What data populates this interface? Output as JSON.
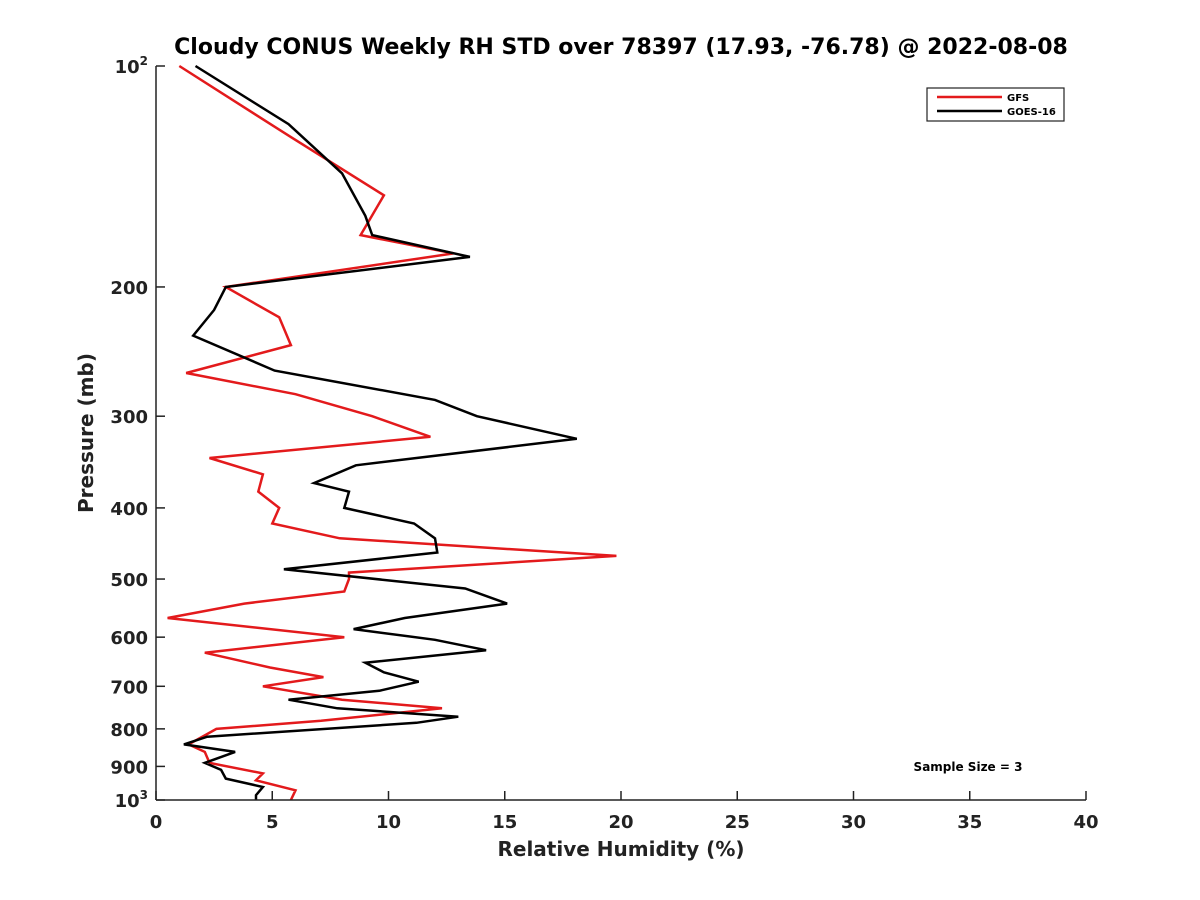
{
  "chart_data": {
    "type": "line",
    "title": "Cloudy CONUS Weekly RH STD over 78397 (17.93, -76.78) @ 2022-08-08",
    "xlabel": "Relative Humidity (%)",
    "ylabel": "Pressure (mb)",
    "xlim": [
      0,
      40
    ],
    "ylim": [
      100,
      1000
    ],
    "y_scale": "log",
    "y_inverted": true,
    "x_ticks": [
      0,
      5,
      10,
      15,
      20,
      25,
      30,
      35,
      40
    ],
    "x_tick_labels": [
      "0",
      "5",
      "10",
      "15",
      "20",
      "25",
      "30",
      "35",
      "40"
    ],
    "y_ticks": [
      {
        "value": 100,
        "base": "10",
        "exp": "2"
      },
      {
        "value": 200,
        "base": "200",
        "exp": ""
      },
      {
        "value": 300,
        "base": "300",
        "exp": ""
      },
      {
        "value": 400,
        "base": "400",
        "exp": ""
      },
      {
        "value": 500,
        "base": "500",
        "exp": ""
      },
      {
        "value": 600,
        "base": "600",
        "exp": ""
      },
      {
        "value": 700,
        "base": "700",
        "exp": ""
      },
      {
        "value": 800,
        "base": "800",
        "exp": ""
      },
      {
        "value": 900,
        "base": "900",
        "exp": ""
      },
      {
        "value": 1000,
        "base": "10",
        "exp": "3"
      }
    ],
    "grid": false,
    "legend_position": "top-right",
    "annotation": "Sample Size = 3",
    "series": [
      {
        "name": "GFS",
        "color": "#e31a1c",
        "points": [
          [
            1.0,
            100
          ],
          [
            5.8,
            125
          ],
          [
            9.8,
            150
          ],
          [
            8.8,
            170
          ],
          [
            12.8,
            180
          ],
          [
            3.0,
            200
          ],
          [
            5.3,
            220
          ],
          [
            5.8,
            240
          ],
          [
            1.3,
            262
          ],
          [
            6.0,
            280
          ],
          [
            9.3,
            300
          ],
          [
            11.8,
            320
          ],
          [
            2.3,
            342
          ],
          [
            4.6,
            360
          ],
          [
            4.4,
            380
          ],
          [
            5.3,
            400
          ],
          [
            5.0,
            420
          ],
          [
            7.9,
            440
          ],
          [
            19.8,
            465
          ],
          [
            8.3,
            490
          ],
          [
            8.3,
            500
          ],
          [
            8.1,
            520
          ],
          [
            3.8,
            540
          ],
          [
            0.5,
            565
          ],
          [
            8.1,
            600
          ],
          [
            2.1,
            630
          ],
          [
            4.9,
            660
          ],
          [
            7.2,
            680
          ],
          [
            4.6,
            700
          ],
          [
            8.0,
            730
          ],
          [
            12.3,
            750
          ],
          [
            7.1,
            780
          ],
          [
            2.6,
            800
          ],
          [
            1.4,
            840
          ],
          [
            2.1,
            860
          ],
          [
            2.3,
            890
          ],
          [
            4.6,
            920
          ],
          [
            4.3,
            940
          ],
          [
            6.0,
            970
          ],
          [
            5.8,
            1000
          ]
        ]
      },
      {
        "name": "GOES-16",
        "color": "#000000",
        "points": [
          [
            1.7,
            100
          ],
          [
            5.7,
            120
          ],
          [
            8.0,
            140
          ],
          [
            9.0,
            160
          ],
          [
            9.3,
            170
          ],
          [
            13.5,
            182
          ],
          [
            3.0,
            200
          ],
          [
            2.5,
            215
          ],
          [
            1.6,
            233
          ],
          [
            5.1,
            260
          ],
          [
            12.0,
            285
          ],
          [
            13.8,
            300
          ],
          [
            18.1,
            322
          ],
          [
            8.6,
            350
          ],
          [
            6.8,
            370
          ],
          [
            8.3,
            380
          ],
          [
            8.1,
            400
          ],
          [
            11.1,
            420
          ],
          [
            12.0,
            440
          ],
          [
            12.1,
            460
          ],
          [
            5.5,
            485
          ],
          [
            13.3,
            515
          ],
          [
            15.1,
            540
          ],
          [
            10.7,
            565
          ],
          [
            8.5,
            585
          ],
          [
            12.0,
            605
          ],
          [
            14.2,
            625
          ],
          [
            9.0,
            650
          ],
          [
            9.8,
            670
          ],
          [
            11.3,
            690
          ],
          [
            9.6,
            710
          ],
          [
            5.7,
            730
          ],
          [
            7.8,
            750
          ],
          [
            13.0,
            770
          ],
          [
            11.2,
            785
          ],
          [
            2.2,
            820
          ],
          [
            1.2,
            840
          ],
          [
            3.4,
            860
          ],
          [
            2.1,
            890
          ],
          [
            2.8,
            910
          ],
          [
            3.0,
            935
          ],
          [
            4.6,
            960
          ],
          [
            4.3,
            985
          ],
          [
            4.3,
            1000
          ]
        ]
      }
    ]
  }
}
